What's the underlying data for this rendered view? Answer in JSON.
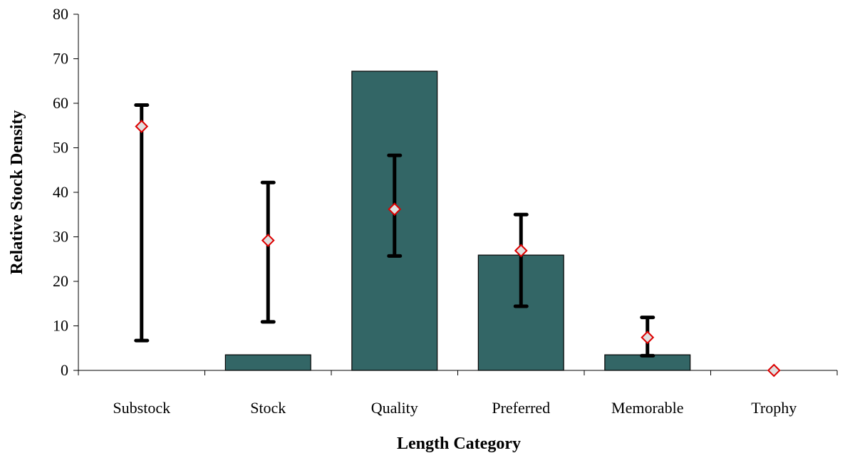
{
  "chart_data": {
    "type": "bar",
    "title": "",
    "xlabel": "Length Category",
    "ylabel": "Relative Stock Density",
    "categories": [
      "Substock",
      "Stock",
      "Quality",
      "Preferred",
      "Memorable",
      "Trophy"
    ],
    "ylim": [
      0,
      80
    ],
    "yticks": [
      0,
      10,
      20,
      30,
      40,
      50,
      60,
      70,
      80
    ],
    "grid": false,
    "legend": "none",
    "bars": {
      "values": [
        0,
        3.5,
        67.2,
        25.9,
        3.5,
        0
      ],
      "color": "#336666"
    },
    "points": {
      "values": [
        54.8,
        29.2,
        36.2,
        26.9,
        7.4,
        0.0
      ],
      "marker": "diamond",
      "stroke_color": "#dd0000",
      "fill_color": "#e0e0e0"
    },
    "error_bars": {
      "lower": [
        6.7,
        10.9,
        25.7,
        14.4,
        3.3,
        null
      ],
      "upper": [
        59.6,
        42.2,
        48.3,
        35.0,
        11.9,
        null
      ],
      "color": "#000000"
    }
  }
}
